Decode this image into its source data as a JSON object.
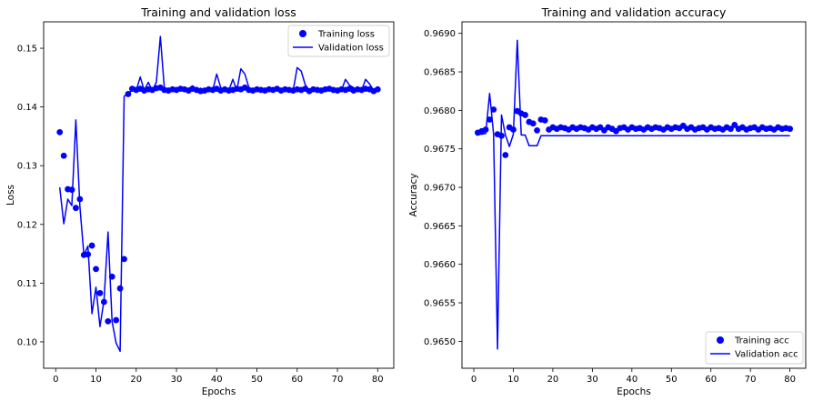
{
  "chart_data": [
    {
      "type": "line",
      "title": "Training and validation loss",
      "xlabel": "Epochs",
      "ylabel": "Loss",
      "xlim": [
        -3,
        84
      ],
      "ylim": [
        0.0955,
        0.1545
      ],
      "xticks": [
        0,
        10,
        20,
        30,
        40,
        50,
        60,
        70,
        80
      ],
      "yticks": [
        0.1,
        0.11,
        0.12,
        0.13,
        0.14,
        0.15
      ],
      "ytick_labels": [
        "0.10",
        "0.11",
        "0.12",
        "0.13",
        "0.14",
        "0.15"
      ],
      "legend_position": "upper right",
      "color": "#0000ff",
      "series": [
        {
          "name": "Training loss",
          "style": "markers",
          "x": [
            1,
            2,
            3,
            4,
            5,
            6,
            7,
            8,
            9,
            10,
            11,
            12,
            13,
            14,
            15,
            16,
            17,
            18,
            19,
            20,
            21,
            22,
            23,
            24,
            25,
            26,
            27,
            28,
            29,
            30,
            31,
            32,
            33,
            34,
            35,
            36,
            37,
            38,
            39,
            40,
            41,
            42,
            43,
            44,
            45,
            46,
            47,
            48,
            49,
            50,
            51,
            52,
            53,
            54,
            55,
            56,
            57,
            58,
            59,
            60,
            61,
            62,
            63,
            64,
            65,
            66,
            67,
            68,
            69,
            70,
            71,
            72,
            73,
            74,
            75,
            76,
            77,
            78,
            79,
            80
          ],
          "values": [
            0.1357,
            0.1317,
            0.126,
            0.1259,
            0.1228,
            0.1243,
            0.1148,
            0.1149,
            0.1164,
            0.1124,
            0.1083,
            0.1068,
            0.1035,
            0.1111,
            0.1037,
            0.1091,
            0.1141,
            0.1422,
            0.1431,
            0.1429,
            0.1431,
            0.1428,
            0.143,
            0.1429,
            0.1432,
            0.1433,
            0.1429,
            0.1428,
            0.143,
            0.1429,
            0.1431,
            0.143,
            0.1428,
            0.1431,
            0.1429,
            0.1427,
            0.1428,
            0.143,
            0.1429,
            0.1431,
            0.1428,
            0.143,
            0.1428,
            0.1429,
            0.1431,
            0.143,
            0.1433,
            0.1429,
            0.1428,
            0.143,
            0.1429,
            0.1428,
            0.143,
            0.1429,
            0.1431,
            0.1428,
            0.143,
            0.1429,
            0.1428,
            0.143,
            0.1429,
            0.1431,
            0.1427,
            0.143,
            0.1429,
            0.1428,
            0.143,
            0.1431,
            0.1429,
            0.1428,
            0.143,
            0.1429,
            0.1431,
            0.1428,
            0.143,
            0.1429,
            0.1431,
            0.143,
            0.1427,
            0.143
          ]
        },
        {
          "name": "Validation loss",
          "style": "line",
          "x": [
            1,
            2,
            3,
            4,
            5,
            6,
            7,
            8,
            9,
            10,
            11,
            12,
            13,
            14,
            15,
            16,
            17,
            18,
            19,
            20,
            21,
            22,
            23,
            24,
            25,
            26,
            27,
            28,
            29,
            30,
            31,
            32,
            33,
            34,
            35,
            36,
            37,
            38,
            39,
            40,
            41,
            42,
            43,
            44,
            45,
            46,
            47,
            48,
            49,
            50,
            51,
            52,
            53,
            54,
            55,
            56,
            57,
            58,
            59,
            60,
            61,
            62,
            63,
            64,
            65,
            66,
            67,
            68,
            69,
            70,
            71,
            72,
            73,
            74,
            75,
            76,
            77,
            78,
            79,
            80
          ],
          "values": [
            0.1263,
            0.1201,
            0.1243,
            0.1232,
            0.1378,
            0.1231,
            0.1148,
            0.1163,
            0.1048,
            0.1093,
            0.1026,
            0.1071,
            0.1187,
            0.1035,
            0.0998,
            0.0984,
            0.1418,
            0.1424,
            0.1428,
            0.1428,
            0.1451,
            0.1428,
            0.1442,
            0.1428,
            0.1442,
            0.152,
            0.1431,
            0.1428,
            0.1428,
            0.1428,
            0.1433,
            0.1428,
            0.1431,
            0.1436,
            0.1428,
            0.1432,
            0.1428,
            0.1428,
            0.1428,
            0.1456,
            0.1433,
            0.1428,
            0.1428,
            0.1447,
            0.1428,
            0.1465,
            0.1456,
            0.1433,
            0.1428,
            0.1428,
            0.1428,
            0.1428,
            0.1428,
            0.1433,
            0.1428,
            0.1428,
            0.1428,
            0.1433,
            0.1428,
            0.1467,
            0.1461,
            0.1438,
            0.1428,
            0.1428,
            0.1433,
            0.1428,
            0.1428,
            0.1433,
            0.1428,
            0.1432,
            0.1428,
            0.1447,
            0.1437,
            0.1433,
            0.1428,
            0.1428,
            0.1447,
            0.1439,
            0.1428,
            0.1428
          ]
        }
      ]
    },
    {
      "type": "line",
      "title": "Training and validation accuracy",
      "xlabel": "Epochs",
      "ylabel": "Accuracy",
      "xlim": [
        -3,
        84
      ],
      "ylim": [
        0.96465,
        0.96915
      ],
      "xticks": [
        0,
        10,
        20,
        30,
        40,
        50,
        60,
        70,
        80
      ],
      "yticks": [
        0.965,
        0.9655,
        0.966,
        0.9665,
        0.967,
        0.9675,
        0.968,
        0.9685,
        0.969
      ],
      "ytick_labels": [
        "0.9650",
        "0.9655",
        "0.9660",
        "0.9665",
        "0.9670",
        "0.9675",
        "0.9680",
        "0.9685",
        "0.9690"
      ],
      "legend_position": "lower right",
      "color": "#0000ff",
      "series": [
        {
          "name": "Training acc",
          "style": "markers",
          "x": [
            1,
            2,
            3,
            4,
            5,
            6,
            7,
            8,
            9,
            10,
            11,
            12,
            13,
            14,
            15,
            16,
            17,
            18,
            19,
            20,
            21,
            22,
            23,
            24,
            25,
            26,
            27,
            28,
            29,
            30,
            31,
            32,
            33,
            34,
            35,
            36,
            37,
            38,
            39,
            40,
            41,
            42,
            43,
            44,
            45,
            46,
            47,
            48,
            49,
            50,
            51,
            52,
            53,
            54,
            55,
            56,
            57,
            58,
            59,
            60,
            61,
            62,
            63,
            64,
            65,
            66,
            67,
            68,
            69,
            70,
            71,
            72,
            73,
            74,
            75,
            76,
            77,
            78,
            79,
            80
          ],
          "values": [
            0.96771,
            0.96773,
            0.96775,
            0.96788,
            0.96801,
            0.96769,
            0.96767,
            0.96742,
            0.96778,
            0.96775,
            0.96799,
            0.96796,
            0.96794,
            0.96785,
            0.96783,
            0.96774,
            0.96788,
            0.96787,
            0.96775,
            0.96778,
            0.96776,
            0.96778,
            0.96777,
            0.96775,
            0.96778,
            0.96776,
            0.96778,
            0.96777,
            0.96775,
            0.96778,
            0.96776,
            0.96778,
            0.96774,
            0.96778,
            0.96776,
            0.96773,
            0.96777,
            0.96778,
            0.96775,
            0.96778,
            0.96776,
            0.96777,
            0.96775,
            0.96778,
            0.96776,
            0.96778,
            0.96777,
            0.96775,
            0.96778,
            0.96776,
            0.96778,
            0.96777,
            0.9678,
            0.96776,
            0.96778,
            0.96775,
            0.96777,
            0.96778,
            0.96775,
            0.96778,
            0.96776,
            0.96777,
            0.96775,
            0.96778,
            0.96776,
            0.96781,
            0.96776,
            0.96778,
            0.96775,
            0.96777,
            0.96778,
            0.96775,
            0.96778,
            0.96776,
            0.96777,
            0.96775,
            0.96778,
            0.96776,
            0.96777,
            0.96776
          ]
        },
        {
          "name": "Validation acc",
          "style": "line",
          "x": [
            1,
            2,
            3,
            4,
            5,
            6,
            7,
            8,
            9,
            10,
            11,
            12,
            13,
            14,
            15,
            16,
            17,
            18,
            19,
            20,
            21,
            22,
            23,
            24,
            25,
            26,
            27,
            28,
            29,
            30,
            31,
            32,
            33,
            34,
            35,
            36,
            37,
            38,
            39,
            40,
            41,
            42,
            43,
            44,
            45,
            46,
            47,
            48,
            49,
            50,
            51,
            52,
            53,
            54,
            55,
            56,
            57,
            58,
            59,
            60,
            61,
            62,
            63,
            64,
            65,
            66,
            67,
            68,
            69,
            70,
            71,
            72,
            73,
            74,
            75,
            76,
            77,
            78,
            79,
            80
          ],
          "values": [
            0.96769,
            0.96769,
            0.9677,
            0.96822,
            0.96769,
            0.9649,
            0.96794,
            0.96768,
            0.96753,
            0.96769,
            0.96891,
            0.96768,
            0.96768,
            0.96754,
            0.96754,
            0.96754,
            0.96767,
            0.96767,
            0.96767,
            0.96767,
            0.96767,
            0.96767,
            0.96767,
            0.96767,
            0.96767,
            0.96767,
            0.96767,
            0.96767,
            0.96767,
            0.96767,
            0.96767,
            0.96767,
            0.96767,
            0.96767,
            0.96767,
            0.96767,
            0.96767,
            0.96767,
            0.96767,
            0.96767,
            0.96767,
            0.96767,
            0.96767,
            0.96767,
            0.96767,
            0.96767,
            0.96767,
            0.96767,
            0.96767,
            0.96767,
            0.96767,
            0.96767,
            0.96767,
            0.96767,
            0.96767,
            0.96767,
            0.96767,
            0.96767,
            0.96767,
            0.96767,
            0.96767,
            0.96767,
            0.96767,
            0.96767,
            0.96767,
            0.96767,
            0.96767,
            0.96767,
            0.96767,
            0.96767,
            0.96767,
            0.96767,
            0.96767,
            0.96767,
            0.96767,
            0.96767,
            0.96767,
            0.96767,
            0.96767,
            0.96767
          ]
        }
      ]
    }
  ]
}
